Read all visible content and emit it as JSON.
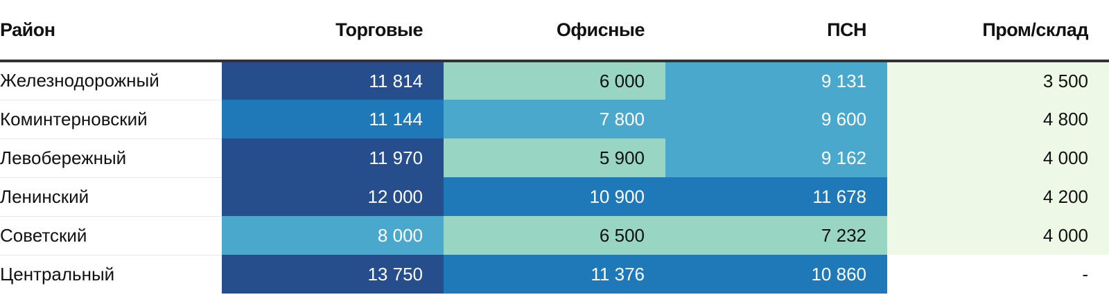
{
  "chart_data": {
    "type": "heatmap",
    "columns": [
      "Район",
      "Торговые",
      "Офисные",
      "ПСН",
      "Пром/склад"
    ],
    "rows": [
      {
        "district": "Железнодорожный",
        "values": [
          "11 814",
          "6 000",
          "9 131",
          "3 500"
        ]
      },
      {
        "district": "Коминтерновский",
        "values": [
          "11 144",
          "7 800",
          "9 600",
          "4 800"
        ]
      },
      {
        "district": "Левобережный",
        "values": [
          "11 970",
          "5 900",
          "9 162",
          "4 000"
        ]
      },
      {
        "district": "Ленинский",
        "values": [
          "12 000",
          "10 900",
          "11 678",
          "4 200"
        ]
      },
      {
        "district": "Советский",
        "values": [
          "8 000",
          "6 500",
          "7 232",
          "4 000"
        ]
      },
      {
        "district": "Центральный",
        "values": [
          "13 750",
          "11 376",
          "10 860",
          "-"
        ]
      }
    ],
    "cell_colors": [
      [
        "#264d8c",
        "#98d6c3",
        "#4aa8cc",
        "#eef8e6"
      ],
      [
        "#1f78b8",
        "#4aa8cc",
        "#4aa8cc",
        "#eef8e6"
      ],
      [
        "#264d8c",
        "#98d6c3",
        "#4aa8cc",
        "#eef8e6"
      ],
      [
        "#264d8c",
        "#1f78b8",
        "#1f78b8",
        "#eef8e6"
      ],
      [
        "#4aa8cc",
        "#98d6c3",
        "#98d6c3",
        "#eef8e6"
      ],
      [
        "#264d8c",
        "#1f78b8",
        "#1f78b8",
        "#ffffff"
      ]
    ],
    "text_colors": {
      "#264d8c": "#ffffff",
      "#1f78b8": "#ffffff",
      "#4aa8cc": "#ffffff",
      "#98d6c3": "#111111",
      "#eef8e6": "#111111",
      "#ffffff": "#111111"
    }
  }
}
